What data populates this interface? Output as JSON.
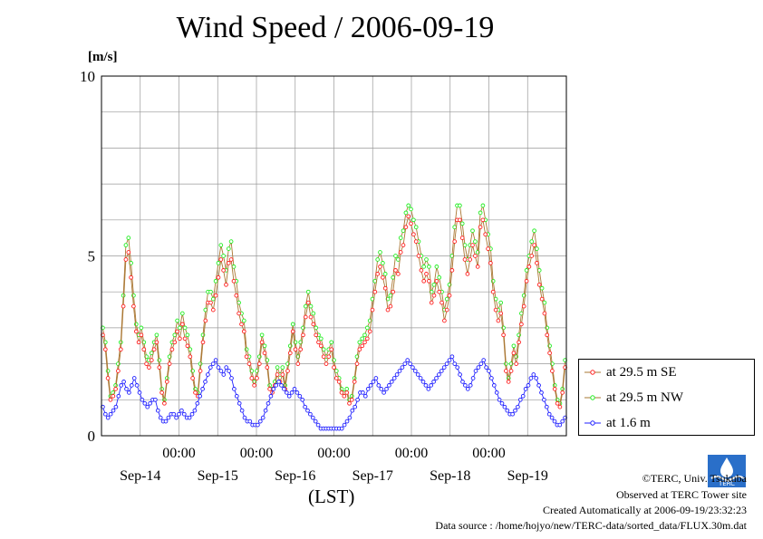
{
  "header": {
    "title": "Wind Speed / 2006-09-19",
    "unit": "[m/s]"
  },
  "axis": {
    "x_time_label": "(LST)"
  },
  "footer": {
    "copyright": "©TERC, Univ. Tsukuba",
    "observed": "Observed at TERC Tower site",
    "created": "Created Automatically at 2006-09-19/23:32:23",
    "source": "Data source : /home/hojyo/new/TERC-data/sorted_data/FLUX.30m.dat"
  },
  "logo": {
    "text": "TERC",
    "icon": "terc-logo-icon"
  },
  "colors": {
    "se": "#ff2020",
    "nw": "#22ee22",
    "low": "#2020ff",
    "line": "#aa7733"
  },
  "chart_data": {
    "type": "line",
    "title": "Wind Speed / 2006-09-19",
    "ylabel": "[m/s]",
    "xlabel": "(LST)",
    "ylim": [
      0,
      10
    ],
    "yticks": [
      "0",
      "5",
      "10"
    ],
    "xlim_days": [
      0,
      6
    ],
    "tick_times": [
      "00:00",
      "00:00",
      "00:00",
      "00:00",
      "00:00"
    ],
    "day_labels": [
      "Sep-14",
      "Sep-15",
      "Sep-16",
      "Sep-17",
      "Sep-18",
      "Sep-19"
    ],
    "grid": true,
    "legend_position": "right",
    "series": [
      {
        "name": "at 29.5 m SE",
        "values": [
          2.8,
          2.4,
          1.6,
          1.0,
          1.1,
          1.3,
          1.8,
          2.4,
          3.6,
          4.9,
          5.1,
          4.4,
          3.6,
          2.9,
          2.6,
          2.8,
          2.4,
          2.0,
          1.9,
          2.1,
          2.4,
          2.6,
          1.9,
          1.2,
          0.9,
          1.5,
          2.0,
          2.4,
          2.6,
          2.9,
          2.7,
          3.1,
          2.7,
          2.5,
          2.2,
          1.6,
          1.2,
          1.1,
          1.8,
          2.6,
          3.2,
          3.7,
          3.7,
          3.5,
          3.9,
          4.4,
          4.9,
          4.6,
          4.2,
          4.8,
          4.9,
          4.3,
          3.9,
          3.4,
          3.1,
          2.9,
          2.2,
          2.0,
          1.6,
          1.4,
          1.6,
          2.0,
          2.6,
          2.3,
          1.9,
          1.3,
          1.2,
          1.4,
          1.7,
          1.5,
          1.7,
          1.3,
          1.8,
          2.3,
          2.9,
          2.4,
          2.0,
          2.4,
          2.8,
          3.3,
          3.7,
          3.3,
          3.1,
          2.8,
          2.6,
          2.5,
          2.2,
          2.0,
          2.2,
          2.4,
          1.9,
          1.6,
          1.5,
          1.2,
          1.1,
          1.2,
          0.9,
          1.0,
          1.5,
          2.0,
          2.4,
          2.5,
          2.6,
          2.7,
          2.9,
          3.5,
          4.0,
          4.5,
          4.7,
          4.4,
          4.1,
          3.5,
          3.6,
          4.0,
          4.6,
          4.5,
          5.1,
          5.3,
          5.8,
          6.1,
          5.9,
          5.6,
          5.4,
          5.0,
          4.6,
          4.3,
          4.5,
          4.3,
          3.7,
          3.9,
          4.3,
          4.0,
          3.7,
          3.2,
          3.5,
          3.9,
          4.6,
          5.4,
          6.0,
          6.0,
          5.5,
          4.9,
          4.5,
          4.9,
          5.3,
          5.0,
          4.7,
          5.8,
          6.0,
          5.6,
          5.2,
          4.8,
          4.0,
          3.5,
          3.2,
          3.4,
          2.8,
          1.8,
          1.5,
          1.8,
          2.3,
          2.0,
          2.6,
          3.1,
          3.6,
          4.3,
          4.7,
          5.0,
          5.3,
          4.8,
          4.2,
          3.8,
          3.4,
          2.8,
          2.3,
          1.8,
          1.3,
          0.9,
          0.8,
          1.2,
          1.9
        ]
      },
      {
        "name": "at 29.5 m NW",
        "values": [
          3.0,
          2.6,
          1.8,
          1.1,
          1.2,
          1.4,
          2.0,
          2.6,
          3.9,
          5.3,
          5.5,
          4.8,
          3.9,
          3.1,
          2.8,
          3.0,
          2.6,
          2.2,
          2.1,
          2.3,
          2.6,
          2.8,
          2.1,
          1.3,
          1.0,
          1.6,
          2.2,
          2.6,
          2.8,
          3.2,
          3.0,
          3.4,
          3.0,
          2.8,
          2.4,
          1.8,
          1.3,
          1.2,
          2.0,
          2.8,
          3.5,
          4.0,
          4.0,
          3.8,
          4.3,
          4.8,
          5.3,
          5.0,
          4.6,
          5.2,
          5.4,
          4.7,
          4.3,
          3.7,
          3.4,
          3.2,
          2.4,
          2.2,
          1.8,
          1.5,
          1.8,
          2.2,
          2.8,
          2.5,
          2.1,
          1.4,
          1.3,
          1.5,
          1.9,
          1.7,
          1.9,
          1.4,
          2.0,
          2.5,
          3.1,
          2.6,
          2.2,
          2.6,
          3.0,
          3.6,
          4.0,
          3.6,
          3.4,
          3.0,
          2.8,
          2.7,
          2.4,
          2.2,
          2.4,
          2.6,
          2.1,
          1.8,
          1.6,
          1.3,
          1.2,
          1.3,
          1.0,
          1.1,
          1.6,
          2.2,
          2.6,
          2.7,
          2.8,
          3.0,
          3.2,
          3.8,
          4.3,
          4.9,
          5.1,
          4.8,
          4.5,
          3.8,
          3.9,
          4.4,
          5.0,
          4.9,
          5.5,
          5.7,
          6.2,
          6.4,
          6.3,
          6.0,
          5.8,
          5.4,
          5.0,
          4.7,
          4.9,
          4.7,
          4.0,
          4.2,
          4.7,
          4.4,
          4.0,
          3.5,
          3.8,
          4.2,
          5.0,
          5.8,
          6.4,
          6.4,
          5.9,
          5.3,
          4.9,
          5.3,
          5.7,
          5.4,
          5.1,
          6.2,
          6.4,
          6.0,
          5.6,
          5.2,
          4.3,
          3.8,
          3.5,
          3.7,
          3.0,
          2.0,
          1.6,
          2.0,
          2.5,
          2.2,
          2.8,
          3.4,
          3.9,
          4.6,
          5.0,
          5.4,
          5.7,
          5.2,
          4.6,
          4.1,
          3.7,
          3.0,
          2.5,
          2.0,
          1.4,
          1.0,
          0.9,
          1.3,
          2.1
        ]
      },
      {
        "name": "at 1.6 m",
        "values": [
          0.8,
          0.6,
          0.5,
          0.6,
          0.7,
          0.8,
          1.1,
          1.4,
          1.5,
          1.3,
          1.2,
          1.4,
          1.6,
          1.4,
          1.2,
          1.0,
          0.9,
          0.8,
          0.9,
          1.0,
          1.0,
          0.7,
          0.5,
          0.4,
          0.4,
          0.5,
          0.6,
          0.6,
          0.5,
          0.6,
          0.7,
          0.6,
          0.5,
          0.5,
          0.6,
          0.7,
          0.9,
          1.1,
          1.3,
          1.5,
          1.7,
          1.9,
          2.0,
          2.1,
          1.9,
          1.8,
          1.7,
          1.9,
          1.8,
          1.6,
          1.3,
          1.1,
          0.9,
          0.7,
          0.5,
          0.4,
          0.4,
          0.3,
          0.3,
          0.3,
          0.4,
          0.5,
          0.7,
          0.9,
          1.1,
          1.3,
          1.4,
          1.5,
          1.4,
          1.3,
          1.2,
          1.1,
          1.2,
          1.3,
          1.2,
          1.1,
          1.0,
          0.8,
          0.7,
          0.6,
          0.5,
          0.4,
          0.3,
          0.2,
          0.2,
          0.2,
          0.2,
          0.2,
          0.2,
          0.2,
          0.2,
          0.2,
          0.3,
          0.4,
          0.5,
          0.7,
          0.8,
          1.0,
          1.2,
          1.2,
          1.1,
          1.3,
          1.4,
          1.5,
          1.6,
          1.4,
          1.3,
          1.2,
          1.3,
          1.4,
          1.5,
          1.6,
          1.7,
          1.8,
          1.9,
          2.0,
          2.1,
          2.0,
          1.9,
          1.8,
          1.7,
          1.6,
          1.5,
          1.4,
          1.3,
          1.4,
          1.5,
          1.6,
          1.7,
          1.8,
          1.9,
          2.0,
          2.1,
          2.2,
          2.0,
          1.9,
          1.7,
          1.5,
          1.4,
          1.3,
          1.4,
          1.6,
          1.8,
          1.9,
          2.0,
          2.1,
          1.9,
          1.8,
          1.6,
          1.4,
          1.2,
          1.0,
          0.9,
          0.8,
          0.7,
          0.6,
          0.6,
          0.7,
          0.8,
          1.0,
          1.1,
          1.3,
          1.4,
          1.6,
          1.7,
          1.6,
          1.4,
          1.2,
          1.0,
          0.8,
          0.6,
          0.5,
          0.4,
          0.3,
          0.3,
          0.4,
          0.5
        ]
      }
    ]
  }
}
